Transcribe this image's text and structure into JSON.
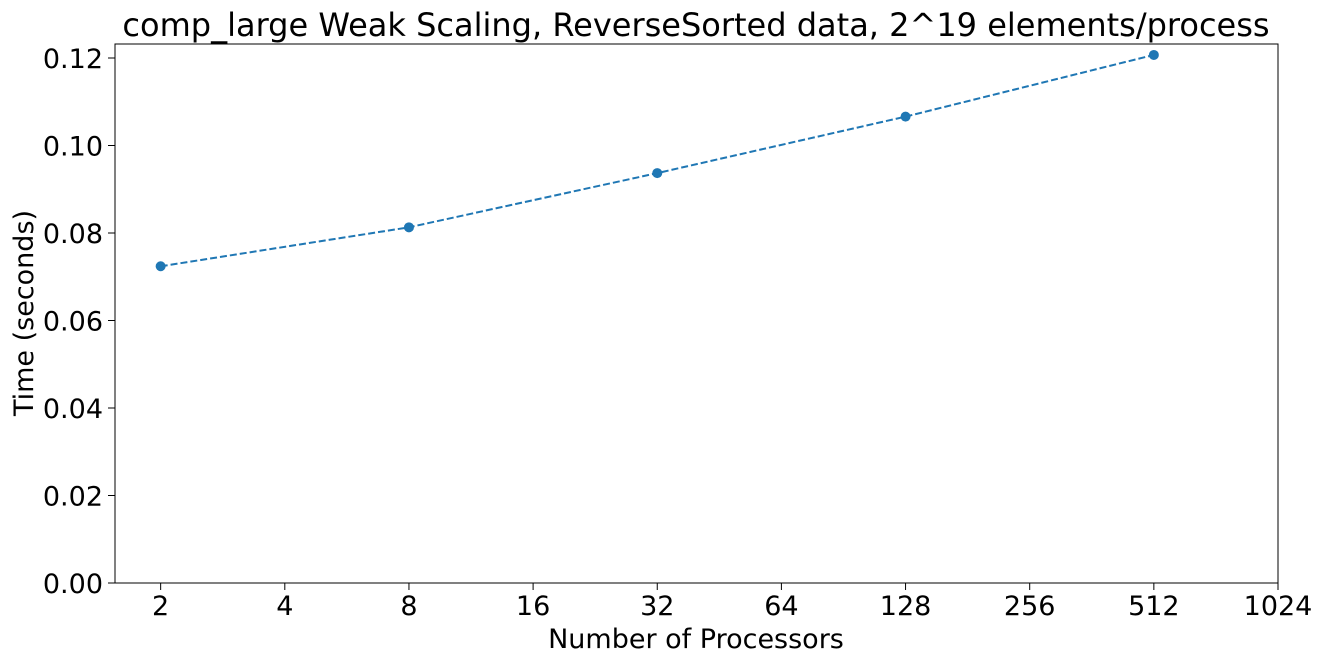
{
  "chart_data": {
    "type": "line",
    "title": "comp_large Weak Scaling, ReverseSorted data, 2^19 elements/process",
    "xlabel": "Number of Processors",
    "ylabel": "Time (seconds)",
    "x_scale": "log2",
    "x_ticks": [
      "2",
      "4",
      "8",
      "16",
      "32",
      "64",
      "128",
      "256",
      "512",
      "1024"
    ],
    "y_ticks": [
      "0.00",
      "0.02",
      "0.04",
      "0.06",
      "0.08",
      "0.10",
      "0.12"
    ],
    "xlim": [
      1.55,
      1024
    ],
    "ylim": [
      0,
      0.1232
    ],
    "grid": false,
    "series": [
      {
        "color": "#1f77b4",
        "line_style": "dashed",
        "marker": "circle",
        "x": [
          2,
          8,
          32,
          128,
          512
        ],
        "values": [
          0.0724,
          0.0813,
          0.0937,
          0.1066,
          0.1207
        ]
      }
    ]
  }
}
